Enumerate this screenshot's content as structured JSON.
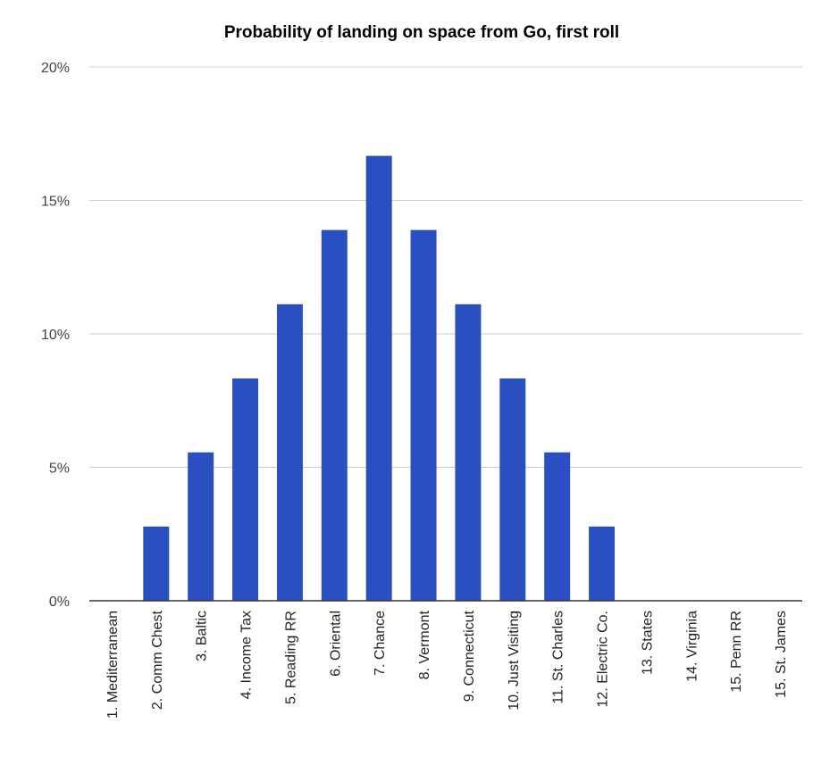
{
  "chart_data": {
    "type": "bar",
    "title": "Probability of landing on space from Go, first roll",
    "xlabel": "",
    "ylabel": "",
    "ylim": [
      0,
      20
    ],
    "yticks": [
      {
        "value": 0,
        "label": "0%"
      },
      {
        "value": 5,
        "label": "5%"
      },
      {
        "value": 10,
        "label": "10%"
      },
      {
        "value": 15,
        "label": "15%"
      },
      {
        "value": 20,
        "label": "20%"
      }
    ],
    "grid": true,
    "legend": "none",
    "bar_color": "#2a4fc1",
    "categories": [
      "1. Mediterranean",
      "2. Comm Chest",
      "3. Baltic",
      "4. Income Tax",
      "5. Reading RR",
      "6. Oriental",
      "7. Chance",
      "8. Vermont",
      "9. Connecticut",
      "10. Just Visiting",
      "11. St. Charles",
      "12. Electric Co.",
      "13. States",
      "14. Virginia",
      "15. Penn RR",
      "15. St. James"
    ],
    "values": [
      0,
      2.78,
      5.56,
      8.33,
      11.11,
      13.89,
      16.67,
      13.89,
      11.11,
      8.33,
      5.56,
      2.78,
      0,
      0,
      0,
      0
    ]
  }
}
